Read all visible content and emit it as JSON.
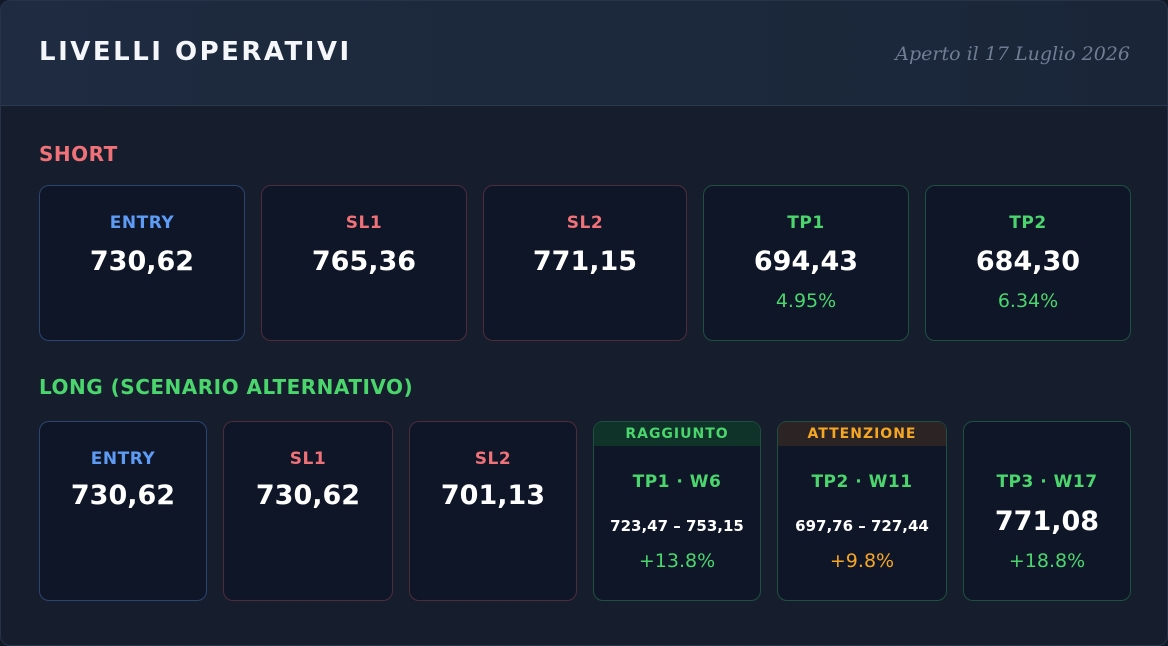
{
  "header": {
    "title": "LIVELLI OPERATIVI",
    "opened": "Aperto il 17 Luglio 2026"
  },
  "short": {
    "label": "SHORT",
    "cards": [
      {
        "label": "ENTRY",
        "value": "730,62"
      },
      {
        "label": "SL1",
        "value": "765,36"
      },
      {
        "label": "SL2",
        "value": "771,15"
      },
      {
        "label": "TP1",
        "value": "694,43",
        "pct": "4.95%"
      },
      {
        "label": "TP2",
        "value": "684,30",
        "pct": "6.34%"
      }
    ]
  },
  "long": {
    "label": "LONG (SCENARIO ALTERNATIVO)",
    "cards": [
      {
        "label": "ENTRY",
        "value": "730,62"
      },
      {
        "label": "SL1",
        "value": "730,62"
      },
      {
        "label": "SL2",
        "value": "701,13"
      },
      {
        "banner": "RAGGIUNTO",
        "label": "TP1 · W6",
        "range": "723,47 – 753,15",
        "pct": "+13.8%"
      },
      {
        "banner": "ATTENZIONE",
        "label": "TP2 · W11",
        "range": "697,76 – 727,44",
        "pct": "+9.8%"
      },
      {
        "label": "TP3 · W17",
        "value": "771,08",
        "pct": "+18.8%"
      }
    ]
  },
  "colors": {
    "accent_blue": "#5e9bf5",
    "accent_red": "#f07178",
    "accent_green": "#4ad66d",
    "accent_orange": "#f5a623",
    "background": "#161e2d"
  }
}
